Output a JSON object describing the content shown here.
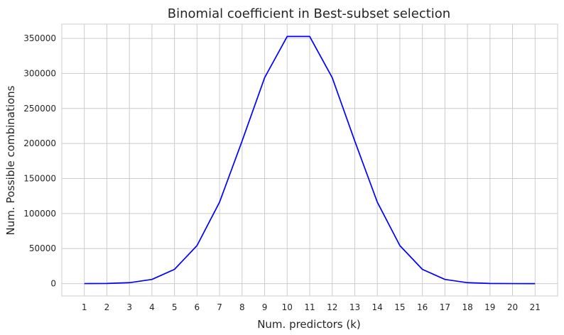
{
  "chart_data": {
    "type": "line",
    "title": "Binomial coefficient in Best-subset selection",
    "xlabel": "Num. predictors (k)",
    "ylabel": "Num. Possible combinations",
    "x": [
      1,
      2,
      3,
      4,
      5,
      6,
      7,
      8,
      9,
      10,
      11,
      12,
      13,
      14,
      15,
      16,
      17,
      18,
      19,
      20,
      21
    ],
    "series": [
      {
        "values": [
          21,
          210,
          1330,
          5985,
          20349,
          54264,
          116280,
          203490,
          293930,
          352716,
          352716,
          293930,
          203490,
          116280,
          54264,
          20349,
          5985,
          1330,
          210,
          21,
          1
        ]
      }
    ],
    "yticks": [
      0,
      50000,
      100000,
      150000,
      200000,
      250000,
      300000,
      350000
    ],
    "ylim": [
      -17636,
      370352
    ],
    "xlim": [
      0,
      22
    ],
    "grid": true,
    "line_color": "#0000ff"
  }
}
